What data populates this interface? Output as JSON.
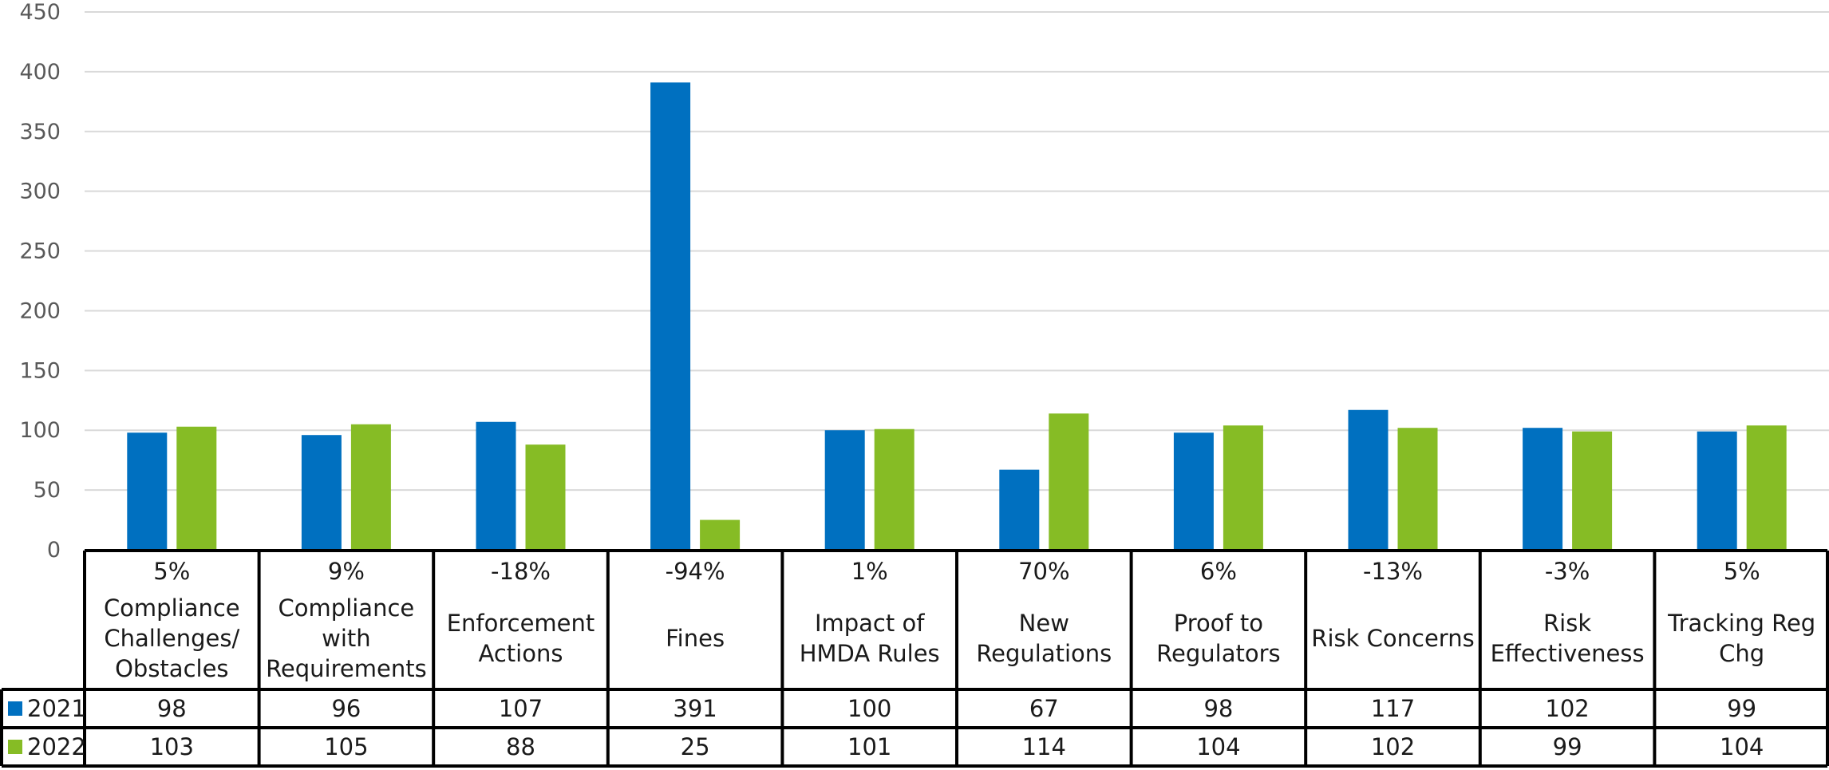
{
  "chart_data": {
    "type": "bar",
    "categories": [
      "Compliance Challenges/ Obstacles",
      "Compliance with Requirements",
      "Enforcement Actions",
      "Fines",
      "Impact of HMDA Rules",
      "New Regulations",
      "Proof to Regulators",
      "Risk Concerns",
      "Risk Effectiveness",
      "Tracking Reg Chg"
    ],
    "category_lines": [
      [
        "Compliance",
        "Challenges/",
        "Obstacles"
      ],
      [
        "Compliance",
        "with",
        "Requirements"
      ],
      [
        "Enforcement",
        "Actions"
      ],
      [
        "Fines"
      ],
      [
        "Impact of",
        "HMDA Rules"
      ],
      [
        "New",
        "Regulations"
      ],
      [
        "Proof to",
        "Regulators"
      ],
      [
        "Risk Concerns"
      ],
      [
        "Risk",
        "Effectiveness"
      ],
      [
        "Tracking Reg",
        "Chg"
      ]
    ],
    "change_labels": [
      "5%",
      "9%",
      "-18%",
      "-94%",
      "1%",
      "70%",
      "6%",
      "-13%",
      "-3%",
      "5%"
    ],
    "series": [
      {
        "name": "2021",
        "color": "#0070c0",
        "values": [
          98,
          96,
          107,
          391,
          100,
          67,
          98,
          117,
          102,
          99
        ]
      },
      {
        "name": "2022",
        "color": "#86bc25",
        "values": [
          103,
          105,
          88,
          25,
          101,
          114,
          104,
          102,
          99,
          104
        ]
      }
    ],
    "ylim": [
      0,
      450
    ],
    "yticks": [
      0,
      50,
      100,
      150,
      200,
      250,
      300,
      350,
      400,
      450
    ],
    "grid": true,
    "legend": "data-table",
    "title": "",
    "xlabel": "",
    "ylabel": ""
  }
}
